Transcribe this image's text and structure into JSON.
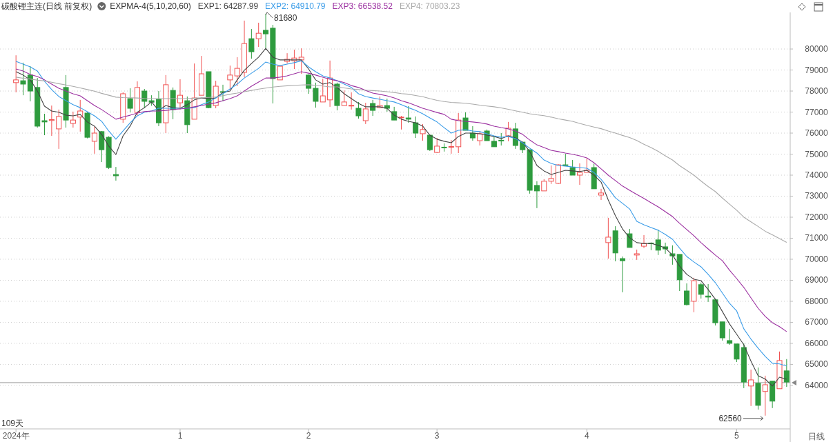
{
  "chart_data": {
    "type": "candlestick",
    "title": "碳酸锂主连(日线 前复权)",
    "subtitle": "EXPMA-4(5,10,20,60)",
    "xlabel": "日线",
    "categories": [
      "2024年",
      null,
      null,
      null,
      null,
      null,
      null,
      null,
      null,
      null,
      null,
      null,
      null,
      null,
      null,
      null,
      null,
      null,
      null,
      null,
      null,
      null,
      null,
      "1",
      null,
      null,
      null,
      null,
      null,
      null,
      null,
      null,
      null,
      null,
      null,
      null,
      null,
      null,
      null,
      null,
      null,
      "2",
      null,
      null,
      null,
      null,
      null,
      null,
      null,
      null,
      null,
      null,
      null,
      null,
      null,
      null,
      null,
      null,
      null,
      "3",
      null,
      null,
      null,
      null,
      null,
      null,
      null,
      null,
      null,
      null,
      null,
      null,
      null,
      null,
      null,
      null,
      null,
      null,
      null,
      null,
      "4",
      null,
      null,
      null,
      null,
      null,
      null,
      null,
      null,
      null,
      null,
      null,
      null,
      null,
      null,
      null,
      null,
      null,
      null,
      null,
      null,
      "5",
      null,
      null,
      null,
      null,
      null,
      null,
      null
    ],
    "ohlc": [
      [
        78400,
        79700,
        77940,
        78530
      ],
      [
        78490,
        79350,
        77800,
        78330
      ],
      [
        78760,
        79180,
        77510,
        78000
      ],
      [
        78170,
        78620,
        76260,
        76330
      ],
      [
        76590,
        76920,
        75900,
        76530
      ],
      [
        76600,
        77310,
        75870,
        76640
      ],
      [
        76200,
        77120,
        75250,
        76790
      ],
      [
        78170,
        78760,
        76260,
        76620
      ],
      [
        76460,
        77020,
        76260,
        76620
      ],
      [
        76760,
        77580,
        76070,
        77050
      ],
      [
        76950,
        77000,
        75750,
        75800
      ],
      [
        75610,
        76300,
        75020,
        76000
      ],
      [
        76070,
        76100,
        74620,
        75210
      ],
      [
        75800,
        75850,
        74290,
        74360
      ],
      [
        74030,
        74390,
        73740,
        73970
      ],
      [
        76660,
        77940,
        76490,
        77870
      ],
      [
        77640,
        78130,
        76980,
        77180
      ],
      [
        76980,
        78460,
        76850,
        78170
      ],
      [
        78000,
        78100,
        77180,
        77510
      ],
      [
        77540,
        77800,
        77300,
        77470
      ],
      [
        77610,
        78000,
        76330,
        76490
      ],
      [
        76490,
        78760,
        76000,
        78300
      ],
      [
        78030,
        78170,
        76660,
        77120
      ],
      [
        77440,
        78560,
        77120,
        77800
      ],
      [
        77540,
        77740,
        76000,
        76400
      ],
      [
        76660,
        79310,
        76660,
        77670
      ],
      [
        77800,
        79670,
        77800,
        78820
      ],
      [
        78920,
        78920,
        77180,
        77210
      ],
      [
        77310,
        78490,
        77180,
        78230
      ],
      [
        77970,
        78300,
        77510,
        77940
      ],
      [
        78530,
        79210,
        78070,
        78760
      ],
      [
        78720,
        79610,
        78230,
        79080
      ],
      [
        78890,
        81350,
        78660,
        80260
      ],
      [
        80490,
        80950,
        79540,
        79870
      ],
      [
        80490,
        81250,
        80100,
        80750
      ],
      [
        80890,
        81680,
        80030,
        80720
      ],
      [
        80990,
        81150,
        77410,
        78590
      ],
      [
        78530,
        79210,
        78530,
        79180
      ],
      [
        79410,
        79800,
        79310,
        79510
      ],
      [
        79440,
        79970,
        79050,
        79570
      ],
      [
        79480,
        80030,
        78820,
        79610
      ],
      [
        78760,
        78800,
        77870,
        78130
      ],
      [
        78130,
        78400,
        77210,
        77510
      ],
      [
        77480,
        78590,
        77480,
        77770
      ],
      [
        77580,
        79450,
        77250,
        78620
      ],
      [
        78330,
        78400,
        77080,
        77310
      ],
      [
        77310,
        78030,
        77310,
        77480
      ],
      [
        77310,
        77940,
        77120,
        77320
      ],
      [
        77180,
        77480,
        76690,
        76820
      ],
      [
        76590,
        77440,
        76430,
        77150
      ],
      [
        77410,
        77580,
        76820,
        77080
      ],
      [
        77210,
        77740,
        77180,
        77310
      ],
      [
        77310,
        77640,
        77020,
        77180
      ],
      [
        77020,
        77250,
        76620,
        76620
      ],
      [
        76740,
        76820,
        76170,
        76760
      ],
      [
        76720,
        77280,
        76490,
        76660
      ],
      [
        76490,
        76790,
        75770,
        76000
      ],
      [
        75970,
        76430,
        75640,
        76170
      ],
      [
        75900,
        75900,
        75150,
        75210
      ],
      [
        75080,
        75770,
        75050,
        75380
      ],
      [
        75330,
        75510,
        75120,
        75310
      ],
      [
        75330,
        75670,
        75020,
        75360
      ],
      [
        75350,
        76950,
        75050,
        76620
      ],
      [
        76720,
        76990,
        76130,
        76130
      ],
      [
        76000,
        76330,
        75640,
        75770
      ],
      [
        75640,
        76070,
        75410,
        75970
      ],
      [
        76100,
        76170,
        75640,
        75640
      ],
      [
        75610,
        75870,
        75350,
        75350
      ],
      [
        75660,
        76000,
        75410,
        75640
      ],
      [
        75870,
        76530,
        75610,
        76230
      ],
      [
        76200,
        76490,
        75250,
        75410
      ],
      [
        75570,
        75570,
        75050,
        75210
      ],
      [
        75210,
        75210,
        73120,
        73280
      ],
      [
        73510,
        73710,
        72430,
        73250
      ],
      [
        73250,
        73810,
        73250,
        73710
      ],
      [
        73710,
        74460,
        73580,
        73840
      ],
      [
        73610,
        74520,
        73580,
        74490
      ],
      [
        74490,
        75020,
        74430,
        74460
      ],
      [
        74360,
        74720,
        74000,
        74000
      ],
      [
        74000,
        74560,
        73540,
        74130
      ],
      [
        74130,
        74790,
        74130,
        74230
      ],
      [
        74360,
        74540,
        73350,
        73350
      ],
      [
        73050,
        73350,
        72820,
        73150
      ],
      [
        70790,
        71970,
        70030,
        71050
      ],
      [
        71350,
        71570,
        69900,
        70300
      ],
      [
        70030,
        70130,
        68430,
        69930
      ],
      [
        71210,
        71440,
        70560,
        70560
      ],
      [
        70200,
        70460,
        69970,
        70260
      ],
      [
        70620,
        71150,
        70530,
        70750
      ],
      [
        70770,
        70800,
        70430,
        70750
      ],
      [
        70920,
        71410,
        70200,
        70430
      ],
      [
        70590,
        70790,
        70260,
        70490
      ],
      [
        70260,
        70660,
        69740,
        70160
      ],
      [
        70230,
        70230,
        68490,
        69020
      ],
      [
        68490,
        68850,
        67800,
        67840
      ],
      [
        68000,
        69120,
        67480,
        68980
      ],
      [
        68790,
        68890,
        68130,
        68330
      ],
      [
        68250,
        68820,
        67970,
        68200
      ],
      [
        68070,
        68130,
        66850,
        66980
      ],
      [
        67020,
        67020,
        66130,
        66260
      ],
      [
        66130,
        66690,
        65930,
        66000
      ],
      [
        65970,
        65970,
        65110,
        65250
      ],
      [
        65800,
        66000,
        63870,
        64160
      ],
      [
        63970,
        64750,
        63020,
        64260
      ],
      [
        64100,
        64850,
        62850,
        63050
      ],
      [
        63710,
        64460,
        62560,
        64030
      ],
      [
        64200,
        64200,
        62920,
        63250
      ],
      [
        63840,
        65610,
        63840,
        65180
      ],
      [
        64690,
        65250,
        63930,
        64160
      ]
    ],
    "colors": [
      "#f05050",
      "#2e9b3e",
      "#2e9b3e",
      "#2e9b3e",
      "#2e9b3e",
      "#f05050",
      "#f05050",
      "#2e9b3e",
      "#f05050",
      "#f05050",
      "#2e9b3e",
      "#f05050",
      "#2e9b3e",
      "#2e9b3e",
      "#2e9b3e",
      "#f05050",
      "#2e9b3e",
      "#f05050",
      "#2e9b3e",
      "#2e9b3e",
      "#2e9b3e",
      "#f05050",
      "#2e9b3e",
      "#f05050",
      "#2e9b3e",
      "#f05050",
      "#f05050",
      "#2e9b3e",
      "#f05050",
      "#2e9b3e",
      "#f05050",
      "#f05050",
      "#f05050",
      "#2e9b3e",
      "#f05050",
      "#2e9b3e",
      "#2e9b3e",
      "#f05050",
      "#f05050",
      "#f05050",
      "#f05050",
      "#2e9b3e",
      "#2e9b3e",
      "#f05050",
      "#f05050",
      "#2e9b3e",
      "#f05050",
      "#f05050",
      "#2e9b3e",
      "#f05050",
      "#2e9b3e",
      "#f05050",
      "#2e9b3e",
      "#2e9b3e",
      "#f05050",
      "#2e9b3e",
      "#2e9b3e",
      "#f05050",
      "#2e9b3e",
      "#f05050",
      "#2e9b3e",
      "#f05050",
      "#f05050",
      "#2e9b3e",
      "#2e9b3e",
      "#f05050",
      "#2e9b3e",
      "#2e9b3e",
      "#2e9b3e",
      "#f05050",
      "#2e9b3e",
      "#2e9b3e",
      "#2e9b3e",
      "#2e9b3e",
      "#f05050",
      "#f05050",
      "#f05050",
      "#2e9b3e",
      "#2e9b3e",
      "#f05050",
      "#f05050",
      "#2e9b3e",
      "#f05050",
      "#f05050",
      "#2e9b3e",
      "#2e9b3e",
      "#2e9b3e",
      "#f05050",
      "#f05050",
      "#2e9b3e",
      "#2e9b3e",
      "#2e9b3e",
      "#2e9b3e",
      "#2e9b3e",
      "#2e9b3e",
      "#f05050",
      "#2e9b3e",
      "#2e9b3e",
      "#2e9b3e",
      "#2e9b3e",
      "#2e9b3e",
      "#2e9b3e",
      "#2e9b3e",
      "#f05050",
      "#2e9b3e",
      "#f05050",
      "#2e9b3e",
      "#f05050",
      "#2e9b3e"
    ],
    "series": [
      {
        "type": "line",
        "name": "EXP1: 64287.99",
        "color": "#444444",
        "values": [
          78920,
          78760,
          78530,
          78000,
          77280,
          77050,
          76990,
          76850,
          76820,
          76890,
          76530,
          76330,
          75940,
          75380,
          74980,
          75870,
          76330,
          76990,
          77210,
          77480,
          77080,
          77310,
          77210,
          77180,
          77350,
          77580,
          77670,
          77640,
          77670,
          77940,
          78000,
          78530,
          78990,
          79310,
          79610,
          80030,
          79610,
          79480,
          79480,
          79480,
          79480,
          79050,
          78530,
          78330,
          78400,
          78170,
          77870,
          77640,
          77410,
          77250,
          77250,
          77250,
          77180,
          76850,
          76660,
          76560,
          76490,
          76330,
          75900,
          75710,
          75610,
          75540,
          75840,
          76000,
          76000,
          75970,
          75900,
          75840,
          75740,
          75870,
          75770,
          75570,
          75120,
          74460,
          74200,
          74030,
          74130,
          74230,
          74200,
          74170,
          74230,
          74000,
          73670,
          72820,
          72070,
          71440,
          71020,
          70790,
          70750,
          70750,
          70660,
          70530,
          70200,
          69670,
          69280,
          69050,
          68980,
          68560,
          68100,
          67510,
          66920,
          66430,
          65930,
          65150,
          64460,
          64300,
          63970,
          64390,
          64290
        ]
      },
      {
        "type": "line",
        "name": "EXP2: 64910.79",
        "color": "#3a9ce8",
        "values": [
          79410,
          79280,
          79150,
          78950,
          78460,
          78070,
          77740,
          77540,
          77350,
          77210,
          77020,
          76820,
          76560,
          76100,
          75710,
          76100,
          76490,
          76820,
          76990,
          77050,
          77180,
          77180,
          77180,
          77180,
          77180,
          77210,
          77350,
          77480,
          77670,
          77870,
          78100,
          78330,
          78620,
          78850,
          79080,
          79380,
          79280,
          79210,
          79280,
          79350,
          79440,
          79150,
          78920,
          78720,
          78620,
          78490,
          78330,
          78170,
          77870,
          77740,
          77670,
          77610,
          77540,
          77480,
          77350,
          77210,
          77080,
          76920,
          76720,
          76530,
          76260,
          76000,
          76130,
          76160,
          76100,
          76070,
          75970,
          75870,
          75800,
          75840,
          75740,
          75540,
          75280,
          75050,
          74720,
          74560,
          74460,
          74430,
          74390,
          74360,
          74330,
          74130,
          73800,
          73380,
          72920,
          72660,
          72390,
          71800,
          71640,
          71510,
          71380,
          71180,
          70950,
          70530,
          70130,
          69870,
          69640,
          69280,
          68890,
          68390,
          67900,
          67540,
          66690,
          66200,
          65770,
          65380,
          65050,
          65020,
          64920
        ]
      },
      {
        "type": "line",
        "name": "EXP3: 66538.52",
        "color": "#9b2fa0",
        "values": [
          79050,
          78950,
          78790,
          78690,
          78530,
          78330,
          78130,
          78000,
          77870,
          77770,
          77540,
          77310,
          77120,
          76890,
          76660,
          76760,
          76850,
          76950,
          77020,
          77050,
          77050,
          77080,
          77120,
          77150,
          77180,
          77250,
          77310,
          77380,
          77440,
          77540,
          77640,
          77770,
          78000,
          78230,
          78430,
          78620,
          78620,
          78660,
          78720,
          78820,
          78920,
          78850,
          78760,
          78660,
          78560,
          78490,
          78400,
          78260,
          78170,
          78030,
          77900,
          77840,
          77770,
          77670,
          77540,
          77440,
          77310,
          77180,
          77080,
          76980,
          76890,
          76660,
          76590,
          76560,
          76530,
          76490,
          76430,
          76330,
          76260,
          76200,
          76100,
          75940,
          75670,
          75440,
          75310,
          75180,
          75120,
          75050,
          74990,
          74920,
          74820,
          74590,
          74300,
          74000,
          73740,
          73480,
          73280,
          73080,
          72890,
          72690,
          72490,
          72260,
          72030,
          71710,
          71410,
          71120,
          70790,
          70490,
          70200,
          69930,
          69480,
          69080,
          68660,
          68160,
          67670,
          67280,
          66980,
          66790,
          66560
        ]
      },
      {
        "type": "line",
        "name": "EXP4: 70803.23",
        "color": "#aaaaaa",
        "values": [
          78660,
          78610,
          78570,
          78520,
          78480,
          78420,
          78350,
          78290,
          78220,
          78150,
          78070,
          77990,
          77890,
          77800,
          77710,
          77690,
          77680,
          77670,
          77650,
          77640,
          77640,
          77640,
          77640,
          77640,
          77640,
          77660,
          77680,
          77700,
          77720,
          77780,
          77850,
          77900,
          77970,
          78030,
          78090,
          78140,
          78190,
          78220,
          78250,
          78270,
          78290,
          78300,
          78270,
          78240,
          78200,
          78200,
          78150,
          78100,
          78070,
          78040,
          78020,
          78000,
          77970,
          77930,
          77880,
          77850,
          77790,
          77730,
          77640,
          77560,
          77500,
          77460,
          77440,
          77420,
          77380,
          77330,
          77290,
          77250,
          77200,
          77130,
          77060,
          76990,
          76920,
          76870,
          76830,
          76760,
          76680,
          76620,
          76560,
          76460,
          76370,
          76290,
          76210,
          76100,
          76000,
          75890,
          75790,
          75650,
          75470,
          75310,
          75130,
          74920,
          74720,
          74450,
          74230,
          74000,
          73720,
          73460,
          73220,
          72910,
          72620,
          72330,
          72000,
          71780,
          71560,
          71330,
          71160,
          70980,
          70800
        ]
      }
    ],
    "ylim": [
      61930,
      81740
    ],
    "yticks": [
      64000,
      65000,
      66000,
      67000,
      68000,
      69000,
      70000,
      71000,
      72000,
      73000,
      74000,
      75000,
      76000,
      77000,
      78000,
      79000,
      80000
    ],
    "ref_lines": [
      {
        "axis": "y",
        "value": 64130,
        "color": "#999999"
      }
    ],
    "annotations": [
      "81680",
      "62560",
      "109天"
    ],
    "legend": "top left",
    "grid": "y"
  }
}
